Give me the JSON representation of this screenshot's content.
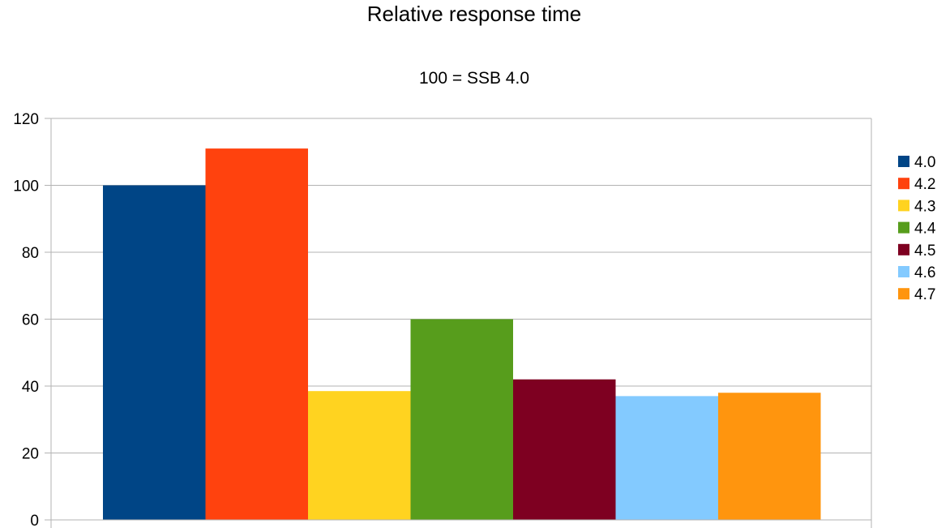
{
  "chart_data": {
    "type": "bar",
    "title": "Relative response time",
    "subtitle": "100 = SSB 4.0",
    "xlabel": "",
    "ylabel": "",
    "ylim": [
      0,
      120
    ],
    "yticks": [
      "0",
      "20",
      "40",
      "60",
      "80",
      "100",
      "120"
    ],
    "grid": true,
    "legend_position": "right",
    "categories": [
      ""
    ],
    "series": [
      {
        "name": "4.0",
        "values": [
          100
        ],
        "color": "#004586"
      },
      {
        "name": "4.2",
        "values": [
          111
        ],
        "color": "#ff420e"
      },
      {
        "name": "4.3",
        "values": [
          38.5
        ],
        "color": "#ffd320"
      },
      {
        "name": "4.4",
        "values": [
          60
        ],
        "color": "#579d1c"
      },
      {
        "name": "4.5",
        "values": [
          42
        ],
        "color": "#7e0021"
      },
      {
        "name": "4.6",
        "values": [
          37
        ],
        "color": "#83caff"
      },
      {
        "name": "4.7",
        "values": [
          38
        ],
        "color": "#ff950e"
      }
    ]
  }
}
